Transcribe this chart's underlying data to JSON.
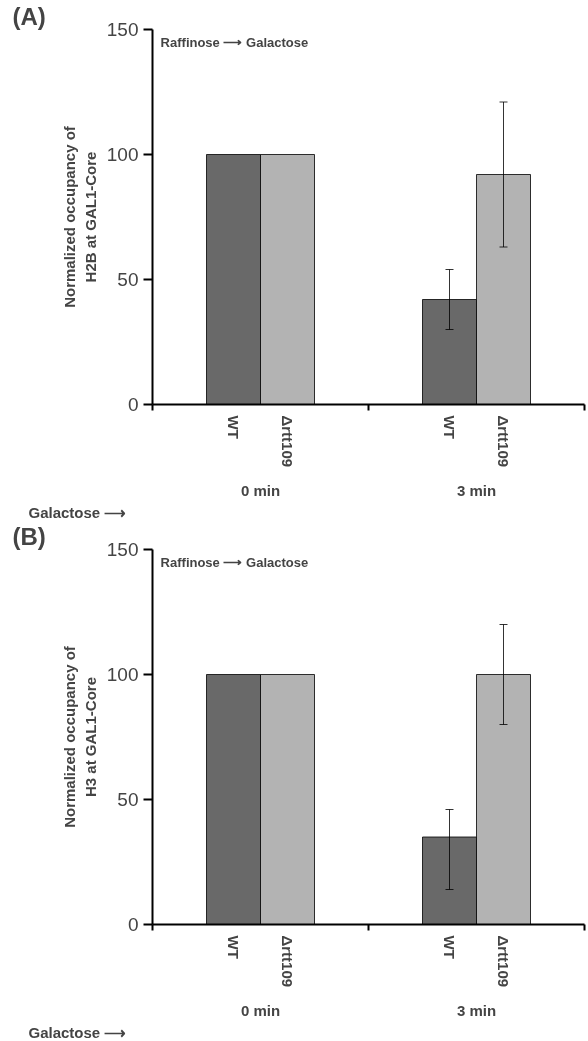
{
  "chart_data": [
    {
      "type": "bar",
      "title": "(A)",
      "ylabel": "Normalized occupancy of\nH2B at GAL1-Core",
      "categories": [
        "WT",
        "Δrtt109",
        "WT",
        "Δrtt109"
      ],
      "values": [
        100,
        100,
        42,
        92
      ],
      "colors": [
        "#696969",
        "#b3b3b3",
        "#696969",
        "#b3b3b3"
      ],
      "errors": [
        null,
        null,
        [
          30,
          54
        ],
        [
          63,
          121
        ]
      ],
      "ylim": [
        0,
        150
      ],
      "yticks": [
        0,
        50,
        100,
        150
      ],
      "grid": false,
      "annotations": [
        "Raffinose ⟶ Galactose",
        "Galactose ⟶",
        "0 min",
        "3 min"
      ]
    },
    {
      "type": "bar",
      "title": "(B)",
      "ylabel": "Normalized occupancy of\nH3 at GAL1-Core",
      "categories": [
        "WT",
        "Δrtt109",
        "WT",
        "Δrtt109"
      ],
      "values": [
        100,
        100,
        35,
        100
      ],
      "colors": [
        "#696969",
        "#b3b3b3",
        "#696969",
        "#b3b3b3"
      ],
      "errors": [
        null,
        null,
        [
          14,
          46
        ],
        [
          80,
          120
        ]
      ],
      "ylim": [
        0,
        150
      ],
      "yticks": [
        0,
        50,
        100,
        150
      ],
      "grid": false,
      "annotations": [
        "Raffinose ⟶ Galactose",
        "Galactose ⟶",
        "0 min",
        "3 min"
      ]
    }
  ]
}
